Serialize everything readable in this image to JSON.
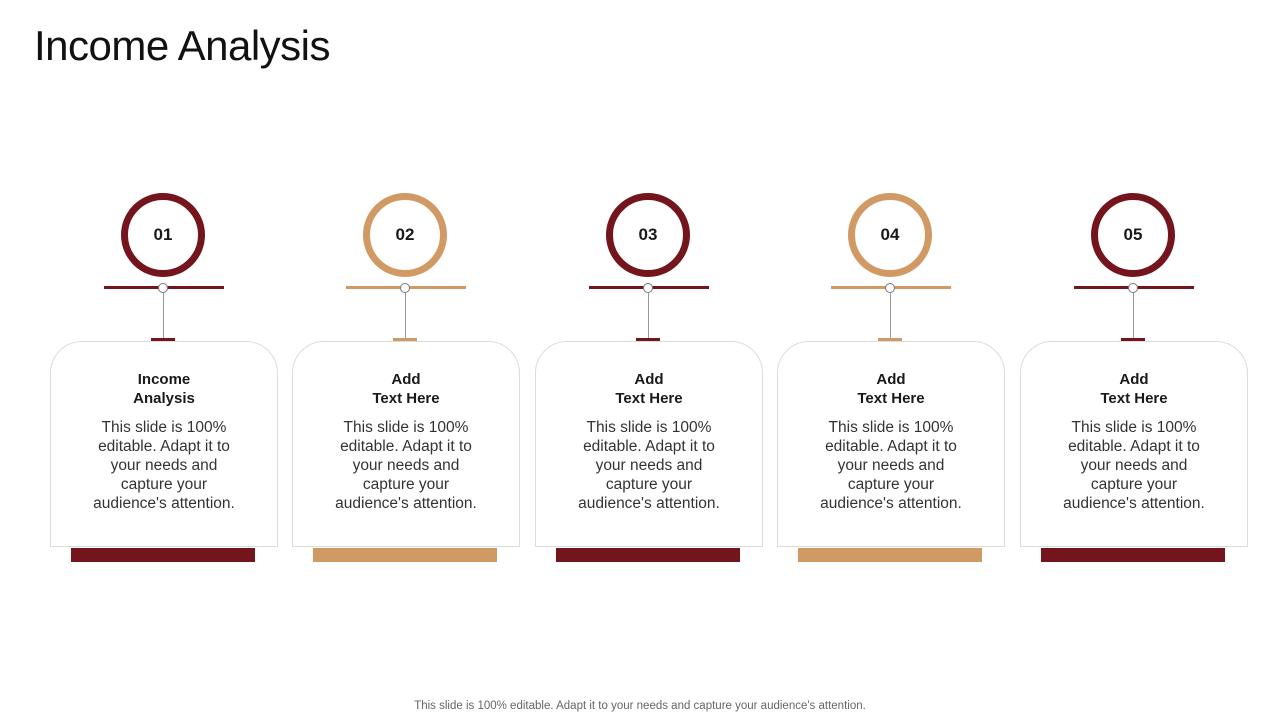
{
  "title": "Income Analysis",
  "colors": {
    "maroon": "#74141c",
    "tan": "#d19a64"
  },
  "steps": [
    {
      "number": "01",
      "heading": "Income\nAnalysis",
      "body": "This slide is 100% editable. Adapt it to your needs and capture your audience's attention.",
      "color": "#74141c"
    },
    {
      "number": "02",
      "heading": "Add\nText Here",
      "body": "This slide is 100% editable. Adapt it to your needs and capture your audience's attention.",
      "color": "#d19a64"
    },
    {
      "number": "03",
      "heading": "Add\nText Here",
      "body": "This slide is 100% editable. Adapt it to your needs and capture your audience's attention.",
      "color": "#74141c"
    },
    {
      "number": "04",
      "heading": "Add\nText Here",
      "body": "This slide is 100% editable. Adapt it to your needs and capture your audience's attention.",
      "color": "#d19a64"
    },
    {
      "number": "05",
      "heading": "Add\nText Here",
      "body": "This slide is 100% editable. Adapt it to your needs and capture your audience's attention.",
      "color": "#74141c"
    }
  ],
  "footer": "This slide is 100% editable. Adapt it to your needs and capture your audience's attention."
}
